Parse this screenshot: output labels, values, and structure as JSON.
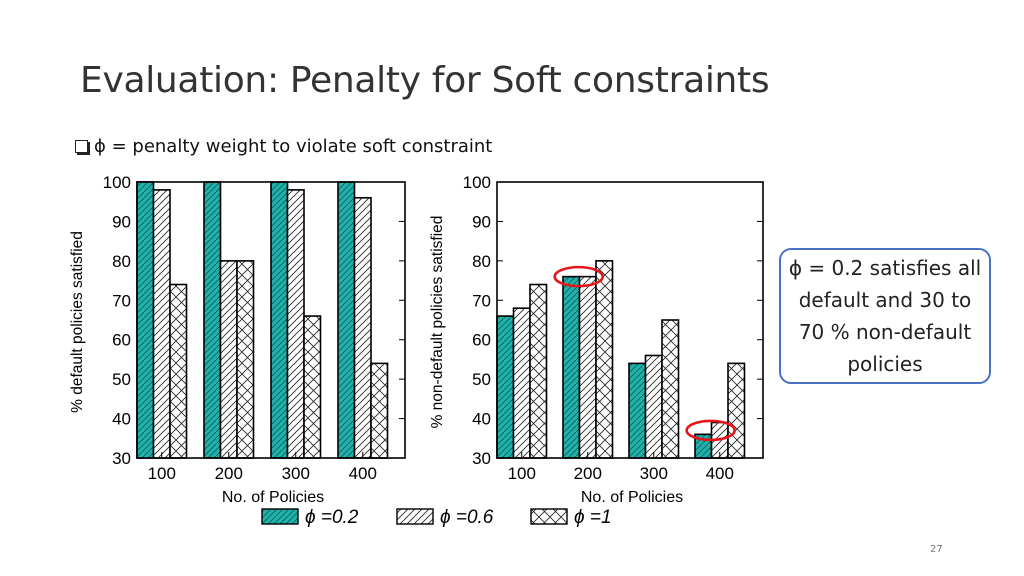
{
  "slide": {
    "title": "Evaluation: Penalty for Soft constraints",
    "bullet": "ϕ = penalty weight to violate soft constraint",
    "callout": "ϕ = 0.2 satisfies all default and 30 to 70 % non-default policies",
    "page_number": "27"
  },
  "colors": {
    "phi_02": "#20b2aa",
    "outline": "#000000",
    "highlight_ellipse": "#e8141c",
    "callout_border": "#4a72c4"
  },
  "chart_data": [
    {
      "type": "bar",
      "title": "",
      "xlabel": "No. of Policies",
      "ylabel": "% default policies satisfied",
      "categories": [
        "100",
        "200",
        "300",
        "400"
      ],
      "ylim": [
        30,
        100
      ],
      "yticks": [
        30,
        40,
        50,
        60,
        70,
        80,
        90,
        100
      ],
      "series": [
        {
          "name": "ϕ=0.2",
          "pattern": "solid-hatch",
          "values": [
            100,
            100,
            100,
            100
          ]
        },
        {
          "name": "ϕ=0.6",
          "pattern": "diagonal",
          "values": [
            98,
            80,
            98,
            96
          ]
        },
        {
          "name": "ϕ=1",
          "pattern": "crosshatch",
          "values": [
            74,
            80,
            66,
            54
          ]
        }
      ],
      "highlights": []
    },
    {
      "type": "bar",
      "title": "",
      "xlabel": "No. of Policies",
      "ylabel": "% non-default policies satisfied",
      "categories": [
        "100",
        "200",
        "300",
        "400"
      ],
      "ylim": [
        30,
        100
      ],
      "yticks": [
        30,
        40,
        50,
        60,
        70,
        80,
        90,
        100
      ],
      "series": [
        {
          "name": "ϕ=0.2",
          "pattern": "solid-hatch",
          "values": [
            66,
            76,
            54,
            36
          ]
        },
        {
          "name": "ϕ=0.6",
          "pattern": "diagonal",
          "values": [
            68,
            76,
            56,
            39
          ]
        },
        {
          "name": "ϕ=1",
          "pattern": "crosshatch",
          "values": [
            74,
            80,
            65,
            54
          ]
        }
      ],
      "highlights": [
        {
          "category": "200",
          "value": 76
        },
        {
          "category": "400",
          "value": 37
        }
      ]
    }
  ],
  "legend": {
    "entries": [
      {
        "label": "ϕ =0.2",
        "pattern": "solid-hatch"
      },
      {
        "label": "ϕ =0.6",
        "pattern": "diagonal"
      },
      {
        "label": "ϕ =1",
        "pattern": "crosshatch"
      }
    ]
  }
}
